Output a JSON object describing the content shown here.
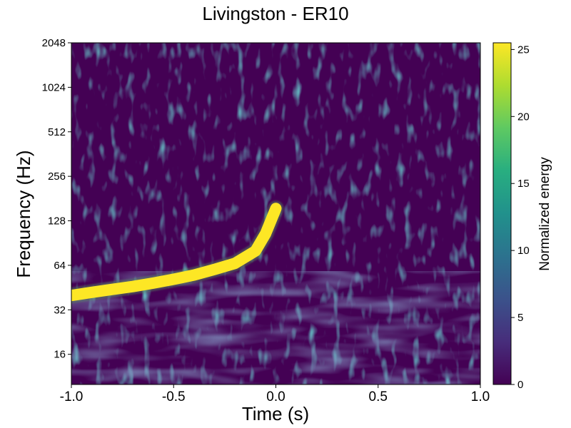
{
  "chart_data": {
    "type": "heatmap",
    "title": "Livingston - ER10",
    "xlabel": "Time (s)",
    "ylabel": "Frequency (Hz)",
    "xlim": [
      -1.0,
      1.0
    ],
    "ylim": [
      10,
      2048
    ],
    "yscale": "log2",
    "xticks": [
      -1.0,
      -0.5,
      0.0,
      0.5,
      1.0
    ],
    "xtick_labels": [
      "-1.0",
      "-0.5",
      "0.0",
      "0.5",
      "1.0"
    ],
    "yticks": [
      16,
      32,
      64,
      128,
      256,
      512,
      1024,
      2048
    ],
    "ytick_labels": [
      "16",
      "32",
      "64",
      "128",
      "256",
      "512",
      "1024",
      "2048"
    ],
    "colorbar": {
      "label": "Normalized energy",
      "range": [
        0,
        25.5
      ],
      "ticks": [
        0,
        5,
        10,
        15,
        20,
        25
      ],
      "tick_labels": [
        "0",
        "5",
        "10",
        "15",
        "20",
        "25"
      ],
      "colormap": "viridis"
    },
    "series": [
      {
        "kind": "chirp-track",
        "x": [
          -1.0,
          -0.9,
          -0.8,
          -0.7,
          -0.6,
          -0.5,
          -0.4,
          -0.3,
          -0.2,
          -0.1,
          -0.05,
          0.0
        ],
        "y": [
          40,
          42,
          44,
          46,
          48.5,
          51.5,
          55,
          60,
          66,
          80,
          105,
          155
        ],
        "value": 25.5
      }
    ],
    "colors": {
      "low": "#440154",
      "high": "#fde725"
    }
  }
}
